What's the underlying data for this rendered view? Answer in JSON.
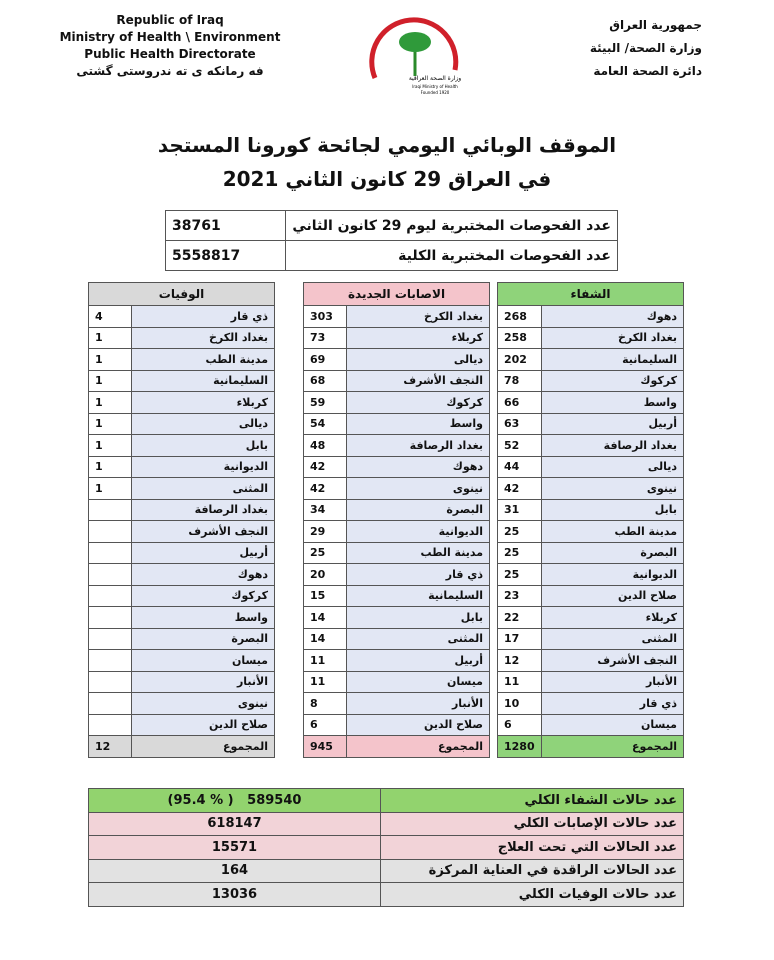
{
  "header": {
    "left": [
      "Republic of Iraq",
      "Ministry of Health \\ Environment",
      "Public Health Directorate",
      "فه رمانكه ى ته ندروستى گشتى"
    ],
    "right": [
      "جمهورية العراق",
      "وزارة الصحة/ البيئة",
      "دائرة الصحة العامة"
    ],
    "logo": [
      "وزارة الصحة العراقية",
      "Iraqi Ministry of Health",
      "Founded 1920"
    ]
  },
  "title": [
    "الموقف الوبائي اليومي لجائحة كورونا المستجد",
    "في العراق  29  كانون الثاني 2021"
  ],
  "tests": {
    "rows": [
      [
        "عدد الفحوصات المختبرية  ليوم 29 كانون الثاني",
        "38761"
      ],
      [
        "عدد الفحوصات المختبرية الكلية",
        "5558817"
      ]
    ]
  },
  "tables": [
    {
      "header": "الوفيات",
      "rows": [
        [
          "ذي قار",
          4
        ],
        [
          "بغداد الكرخ",
          1
        ],
        [
          "مدينة الطب",
          1
        ],
        [
          "السليمانية",
          1
        ],
        [
          "كربلاء",
          1
        ],
        [
          "ديالى",
          1
        ],
        [
          "بابل",
          1
        ],
        [
          "الديوانية",
          1
        ],
        [
          "المثنى",
          1
        ],
        [
          "بغداد الرصافة",
          null
        ],
        [
          "النجف الأشرف",
          null
        ],
        [
          "أربيل",
          null
        ],
        [
          "دهوك",
          null
        ],
        [
          "كركوك",
          null
        ],
        [
          "واسط",
          null
        ],
        [
          "البصرة",
          null
        ],
        [
          "ميسان",
          null
        ],
        [
          "الأنبار",
          null
        ],
        [
          "نينوى",
          null
        ],
        [
          "صلاح الدين",
          null
        ]
      ],
      "total": [
        "المجموع",
        12
      ]
    },
    {
      "header": "الاصابات الجديدة",
      "rows": [
        [
          "بغداد الكرخ",
          303
        ],
        [
          "كربلاء",
          73
        ],
        [
          "ديالى",
          69
        ],
        [
          "النجف الأشرف",
          68
        ],
        [
          "كركوك",
          59
        ],
        [
          "واسط",
          54
        ],
        [
          "بغداد الرصافة",
          48
        ],
        [
          "دهوك",
          42
        ],
        [
          "نينوى",
          42
        ],
        [
          "البصرة",
          34
        ],
        [
          "الديوانية",
          29
        ],
        [
          "مدينة الطب",
          25
        ],
        [
          "ذي قار",
          20
        ],
        [
          "السليمانية",
          15
        ],
        [
          "بابل",
          14
        ],
        [
          "المثنى",
          14
        ],
        [
          "أربيل",
          11
        ],
        [
          "ميسان",
          11
        ],
        [
          "الأنبار",
          8
        ],
        [
          "صلاح الدين",
          6
        ]
      ],
      "total": [
        "المجموع",
        945
      ]
    },
    {
      "header": "الشفاء",
      "rows": [
        [
          "دهوك",
          268
        ],
        [
          "بغداد الكرخ",
          258
        ],
        [
          "السليمانية",
          202
        ],
        [
          "كركوك",
          78
        ],
        [
          "واسط",
          66
        ],
        [
          "أربيل",
          63
        ],
        [
          "بغداد الرصافة",
          52
        ],
        [
          "ديالى",
          44
        ],
        [
          "نينوى",
          42
        ],
        [
          "بابل",
          31
        ],
        [
          "مدينة الطب",
          25
        ],
        [
          "البصرة",
          25
        ],
        [
          "الديوانية",
          25
        ],
        [
          "صلاح الدين",
          23
        ],
        [
          "كربلاء",
          22
        ],
        [
          "المثنى",
          17
        ],
        [
          "النجف الأشرف",
          12
        ],
        [
          "الأنبار",
          11
        ],
        [
          "ذي قار",
          10
        ],
        [
          "ميسان",
          6
        ]
      ],
      "total": [
        "المجموع",
        1280
      ]
    }
  ],
  "summary": {
    "rows": [
      [
        "عدد حالات الشفاء الكلي",
        589540,
        "(95.4 % )"
      ],
      [
        "عدد حالات الإصابات الكلي",
        618147
      ],
      [
        "عدد الحالات التي تحت العلاج",
        15571
      ],
      [
        "عدد الحالات الراقدة في العناية المركزة",
        164
      ],
      [
        "عدد حالات الوفيات الكلي",
        13036
      ]
    ]
  }
}
